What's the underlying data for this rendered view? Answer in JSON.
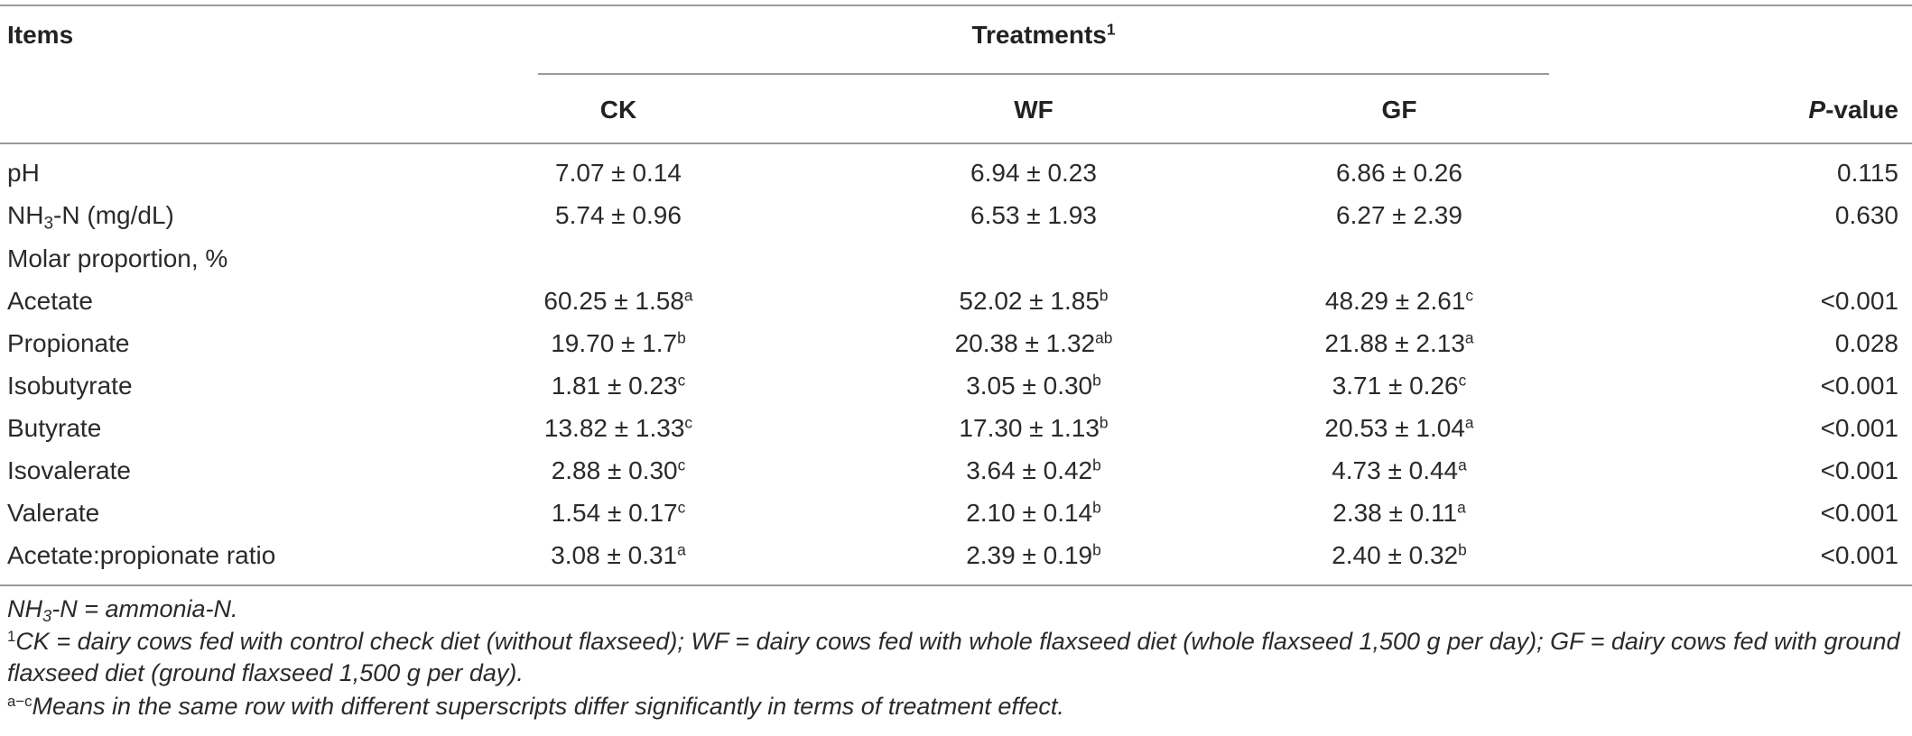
{
  "header": {
    "items": "Items",
    "treatments": "Treatments",
    "treatments_sup": "1",
    "columns": [
      "CK",
      "WF",
      "GF"
    ],
    "pvalue_p": "P",
    "pvalue_rest": "-value"
  },
  "rows": [
    {
      "label": "pH",
      "ck": "7.07 ± 0.14",
      "ck_sup": "",
      "wf": "6.94 ± 0.23",
      "wf_sup": "",
      "gf": "6.86 ± 0.26",
      "gf_sup": "",
      "p": "0.115"
    },
    {
      "label_pre": "NH",
      "label_sub": "3",
      "label_post": "-N (mg/dL)",
      "ck": "5.74 ± 0.96",
      "ck_sup": "",
      "wf": "6.53 ± 1.93",
      "wf_sup": "",
      "gf": "6.27 ± 2.39",
      "gf_sup": "",
      "p": "0.630"
    },
    {
      "label": "Molar proportion, %"
    },
    {
      "label": "Acetate",
      "ck": "60.25 ± 1.58",
      "ck_sup": "a",
      "wf": "52.02 ± 1.85",
      "wf_sup": "b",
      "gf": "48.29 ± 2.61",
      "gf_sup": "c",
      "p": "<0.001"
    },
    {
      "label": "Propionate",
      "ck": "19.70 ± 1.7",
      "ck_sup": "b",
      "wf": "20.38 ± 1.32",
      "wf_sup": "ab",
      "gf": "21.88 ± 2.13",
      "gf_sup": "a",
      "p": "0.028"
    },
    {
      "label": "Isobutyrate",
      "ck": "1.81 ± 0.23",
      "ck_sup": "c",
      "wf": "3.05 ± 0.30",
      "wf_sup": "b",
      "gf": "3.71 ± 0.26",
      "gf_sup": "c",
      "p": "<0.001"
    },
    {
      "label": "Butyrate",
      "ck": "13.82 ± 1.33",
      "ck_sup": "c",
      "wf": "17.30 ± 1.13",
      "wf_sup": "b",
      "gf": "20.53 ± 1.04",
      "gf_sup": "a",
      "p": "<0.001"
    },
    {
      "label": "Isovalerate",
      "ck": "2.88 ± 0.30",
      "ck_sup": "c",
      "wf": "3.64 ± 0.42",
      "wf_sup": "b",
      "gf": "4.73 ± 0.44",
      "gf_sup": "a",
      "p": "<0.001"
    },
    {
      "label": "Valerate",
      "ck": "1.54 ± 0.17",
      "ck_sup": "c",
      "wf": "2.10 ± 0.14",
      "wf_sup": "b",
      "gf": "2.38 ± 0.11",
      "gf_sup": "a",
      "p": "<0.001"
    },
    {
      "label": "Acetate:propionate ratio",
      "ck": "3.08 ± 0.31",
      "ck_sup": "a",
      "wf": "2.39 ± 0.19",
      "wf_sup": "b",
      "gf": "2.40 ± 0.32",
      "gf_sup": "b",
      "p": "<0.001"
    }
  ],
  "footnotes": {
    "fn1_pre": "NH",
    "fn1_sub": "3",
    "fn1_post": "-N = ammonia-N.",
    "fn2_sup": "1",
    "fn2_text": "CK = dairy cows fed with control check diet (without flaxseed); WF = dairy cows fed with whole flaxseed diet (whole flaxseed 1,500 g per day); GF = dairy cows fed with ground flaxseed diet (ground flaxseed 1,500 g per day).",
    "fn3_sup": "a−c",
    "fn3_text": "Means in the same row with different superscripts differ significantly in terms of treatment effect."
  }
}
